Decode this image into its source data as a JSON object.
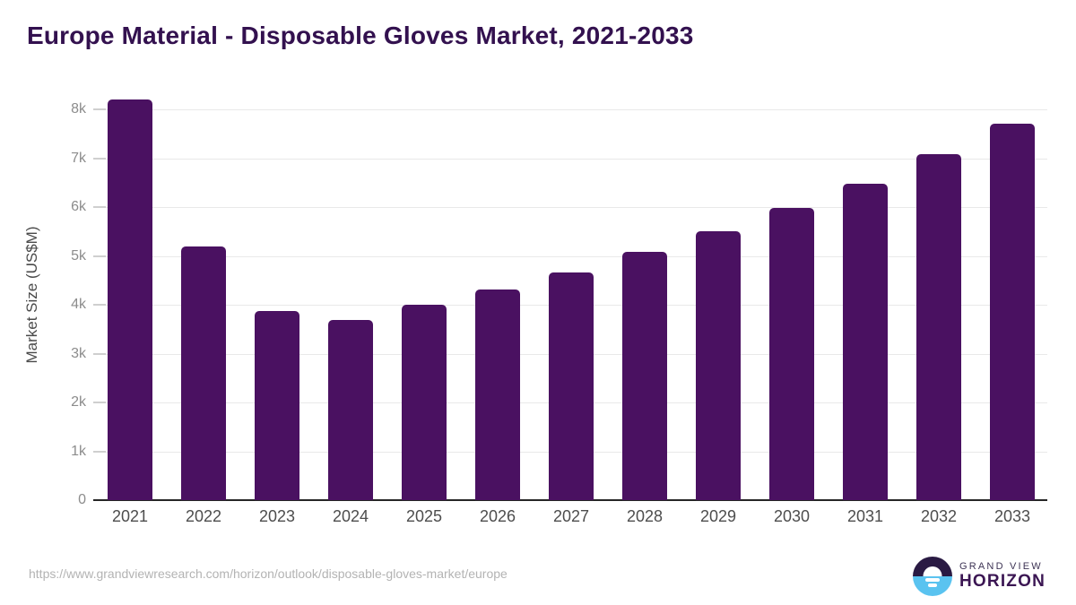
{
  "title": "Europe Material - Disposable Gloves Market, 2021-2033",
  "chart_data": {
    "type": "bar",
    "title": "Europe Material - Disposable Gloves Market, 2021-2033",
    "categories": [
      "2021",
      "2022",
      "2023",
      "2024",
      "2025",
      "2026",
      "2027",
      "2028",
      "2029",
      "2030",
      "2031",
      "2032",
      "2033"
    ],
    "values": [
      8200,
      5200,
      3880,
      3680,
      4000,
      4310,
      4660,
      5080,
      5500,
      5980,
      6480,
      7080,
      7700
    ],
    "xlabel": "",
    "ylabel": "Market Size (US$M)",
    "ylim": [
      0,
      8330
    ],
    "yticks": [
      0,
      1000,
      2000,
      3000,
      4000,
      5000,
      6000,
      7000,
      8000
    ],
    "ytick_labels": [
      "0",
      "1k",
      "2k",
      "3k",
      "4k",
      "5k",
      "6k",
      "7k",
      "8k"
    ],
    "grid": true,
    "legend": "none",
    "bar_color": "#4a1161"
  },
  "footer": {
    "source_url": "https://www.grandviewresearch.com/horizon/outlook/disposable-gloves-market/europe",
    "logo": {
      "line1": "GRAND VIEW",
      "line2": "HORIZON"
    }
  },
  "colors": {
    "title": "#33114f",
    "bar": "#4a1161",
    "grid": "#e9e9e9",
    "tick": "#cfcfcf",
    "axis_line": "#262626",
    "y_tick_labels": "#8c8c8c",
    "x_tick_labels": "#4d4d4d",
    "y_axis_title": "#4a4a4a",
    "url_text": "#b3b3b3",
    "logo_navy": "#2a1a43",
    "logo_blue": "#5ac3f0",
    "logo_text_top": "#3d3354",
    "logo_text_bottom": "#3b1653"
  }
}
